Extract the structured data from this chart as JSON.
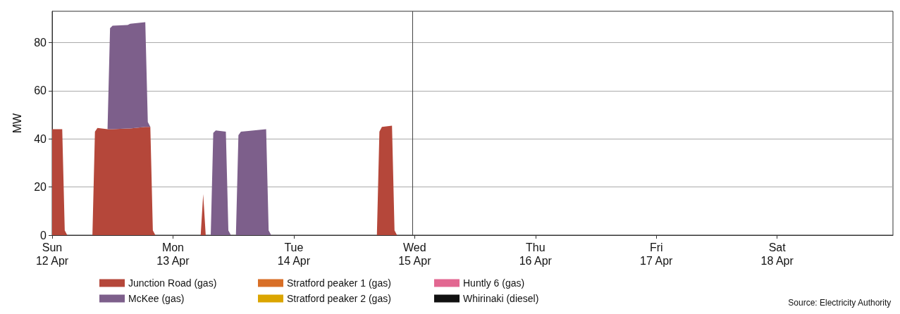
{
  "chart_data": {
    "type": "area",
    "ylabel": "MW",
    "stacked": true,
    "x": [
      "--04-12T00:00",
      "--04-12T02:00",
      "--04-12T02:30",
      "--04-12T03:00",
      "--04-12T08:00",
      "--04-12T08:30",
      "--04-12T09:00",
      "--04-12T11:00",
      "--04-12T11:30",
      "--04-12T12:00",
      "--04-12T15:00",
      "--04-12T15:30",
      "--04-12T16:30",
      "--04-12T18:30",
      "--04-12T19:00",
      "--04-12T19:30",
      "--04-12T20:00",
      "--04-12T20:30",
      "--04-13T05:30",
      "--04-13T06:00",
      "--04-13T06:30",
      "--04-13T07:30",
      "--04-13T08:00",
      "--04-13T08:30",
      "--04-13T10:30",
      "--04-13T11:00",
      "--04-13T11:30",
      "--04-13T12:30",
      "--04-13T13:00",
      "--04-13T13:30",
      "--04-13T15:00",
      "--04-13T18:30",
      "--04-13T19:00",
      "--04-13T19:30",
      "--04-14T16:30",
      "--04-14T17:00",
      "--04-14T17:30",
      "--04-14T19:30",
      "--04-14T20:00",
      "--04-14T20:30",
      "--04-14T23:30"
    ],
    "series": [
      {
        "name": "Junction Road (gas)",
        "color": "#b5473a",
        "values": [
          44,
          44,
          2,
          0,
          0,
          43,
          44.5,
          44,
          44,
          44,
          44.3,
          44.3,
          44.5,
          45,
          45,
          45,
          2,
          0,
          0,
          17,
          0,
          0,
          0,
          0,
          0,
          0,
          0,
          0,
          0,
          0,
          0,
          0,
          0,
          0,
          0,
          43,
          45,
          45.5,
          2,
          0,
          0
        ]
      },
      {
        "name": "McKee (gas)",
        "color": "#7d5f8b",
        "values": [
          0,
          0,
          0,
          0,
          0,
          0,
          0,
          0,
          42,
          43,
          43,
          43.5,
          43.5,
          43.5,
          2,
          0,
          0,
          0,
          0,
          0,
          0,
          0,
          42.5,
          43.5,
          43,
          2,
          0,
          0,
          41.5,
          43,
          43.3,
          44,
          2,
          0,
          0,
          0,
          0,
          0,
          0,
          0,
          0
        ]
      },
      {
        "name": "Stratford peaker 1 (gas)",
        "color": "#d86f27",
        "values": [
          null,
          null,
          null,
          null,
          null,
          null,
          null,
          null,
          null,
          null,
          null,
          null,
          null,
          null,
          null,
          null,
          null,
          null,
          null,
          null,
          null,
          null,
          null,
          null,
          null,
          null,
          null,
          null,
          null,
          null,
          null,
          null,
          null,
          null,
          null,
          null,
          null,
          null,
          null,
          null,
          null
        ]
      },
      {
        "name": "Stratford peaker 2 (gas)",
        "color": "#dba500",
        "values": [
          null,
          null,
          null,
          null,
          null,
          null,
          null,
          null,
          null,
          null,
          null,
          null,
          null,
          null,
          null,
          null,
          null,
          null,
          null,
          null,
          null,
          null,
          null,
          null,
          null,
          null,
          null,
          null,
          null,
          null,
          null,
          null,
          null,
          null,
          null,
          null,
          null,
          null,
          null,
          null,
          null
        ]
      },
      {
        "name": "Huntly 6 (gas)",
        "color": "#e26791",
        "values": [
          null,
          null,
          null,
          null,
          null,
          null,
          null,
          null,
          null,
          null,
          null,
          null,
          null,
          null,
          null,
          null,
          null,
          null,
          null,
          null,
          null,
          null,
          null,
          null,
          null,
          null,
          null,
          null,
          null,
          null,
          null,
          null,
          null,
          null,
          null,
          null,
          null,
          null,
          null,
          null,
          null
        ]
      },
      {
        "name": "Whirinaki (diesel)",
        "color": "#111111",
        "values": [
          null,
          null,
          null,
          null,
          null,
          null,
          null,
          null,
          null,
          null,
          null,
          null,
          null,
          null,
          null,
          null,
          null,
          null,
          null,
          null,
          null,
          null,
          null,
          null,
          null,
          null,
          null,
          null,
          null,
          null,
          null,
          null,
          null,
          null,
          null,
          null,
          null,
          null,
          null,
          null,
          null
        ]
      }
    ],
    "xlim": [
      "--04-12T00:00",
      "--04-18T23:00"
    ],
    "xticks": [
      {
        "value": "--04-12T00:00",
        "label": "Sun\n12 Apr"
      },
      {
        "value": "--04-13T00:00",
        "label": "Mon\n13 Apr"
      },
      {
        "value": "--04-14T00:00",
        "label": "Tue\n14 Apr"
      },
      {
        "value": "--04-15T00:00",
        "label": "Wed\n15 Apr"
      },
      {
        "value": "--04-16T00:00",
        "label": "Thu\n16 Apr"
      },
      {
        "value": "--04-17T00:00",
        "label": "Fri\n17 Apr"
      },
      {
        "value": "--04-18T00:00",
        "label": "Sat\n18 Apr"
      }
    ],
    "ylim": [
      0,
      93
    ],
    "yticks": [
      0,
      20,
      40,
      60,
      80
    ],
    "grid": "y",
    "legend": "bottom",
    "ref_lines": [
      {
        "axis": "x",
        "value": "--04-14T23:30",
        "color": "#444444"
      }
    ],
    "annotations": [
      "Source: Electricity Authority"
    ]
  }
}
